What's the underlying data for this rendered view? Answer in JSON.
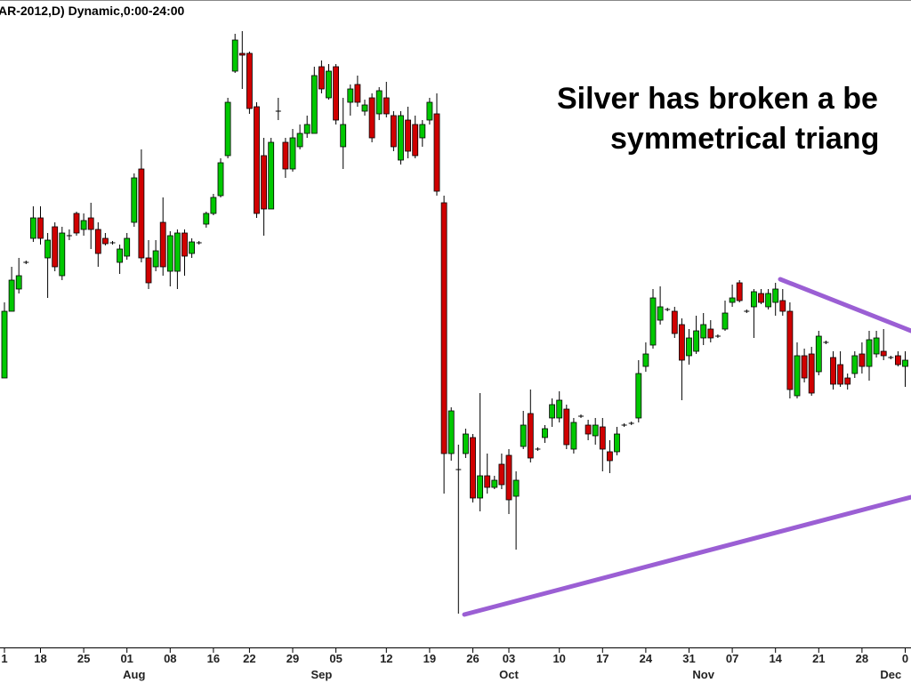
{
  "chart_data": {
    "type": "candlestick",
    "title": "AR-2012,D) Dynamic,0:00-24:00",
    "annotation": [
      "Silver has broken a be",
      "symmetrical triang"
    ],
    "up_color": "#00c800",
    "down_color": "#d00000",
    "ylim": [
      0,
      725
    ],
    "categories": [
      "1",
      null,
      null,
      null,
      null,
      "18",
      null,
      null,
      null,
      null,
      null,
      "25",
      null,
      null,
      null,
      null,
      null,
      "01",
      null,
      null,
      null,
      null,
      null,
      "08",
      null,
      null,
      null,
      null,
      null,
      "16",
      null,
      null,
      null,
      null,
      "22",
      null,
      null,
      null,
      null,
      null,
      "29",
      null,
      null,
      null,
      null,
      null,
      "05",
      null,
      null,
      null,
      null,
      null,
      null,
      "12",
      null,
      null,
      null,
      null,
      null,
      "19",
      null,
      null,
      null,
      null,
      null,
      "26",
      null,
      null,
      null,
      null,
      "03",
      null,
      null,
      null,
      null,
      null,
      null,
      "10",
      null,
      null,
      null,
      null,
      null,
      "17",
      null,
      null,
      null,
      null,
      null,
      "24",
      null,
      null,
      null,
      null,
      null,
      "31",
      null,
      null,
      null,
      null,
      null,
      "07",
      null,
      null,
      null,
      null,
      null,
      "14",
      null,
      null,
      null,
      null,
      null,
      "21",
      null,
      null,
      null,
      null,
      null,
      "28",
      null,
      null,
      null,
      null,
      null,
      "0"
    ],
    "months": [
      null,
      null,
      null,
      null,
      null,
      null,
      null,
      null,
      null,
      null,
      null,
      null,
      null,
      null,
      null,
      null,
      null,
      null,
      "Aug",
      null,
      null,
      null,
      null,
      null,
      null,
      null,
      null,
      null,
      null,
      null,
      null,
      null,
      null,
      null,
      null,
      null,
      null,
      null,
      null,
      null,
      null,
      null,
      null,
      null,
      "Sep",
      null,
      null,
      null,
      null,
      null,
      null,
      null,
      null,
      null,
      null,
      null,
      null,
      null,
      null,
      null,
      null,
      null,
      null,
      null,
      null,
      null,
      null,
      null,
      null,
      null,
      "Oct",
      null,
      null,
      null,
      null,
      null,
      null,
      null,
      null,
      null,
      null,
      null,
      null,
      null,
      null,
      null,
      null,
      null,
      null,
      null,
      null,
      null,
      null,
      null,
      null,
      null,
      null,
      "Nov",
      null,
      null,
      null,
      null,
      null,
      null,
      null,
      null,
      null,
      null,
      null,
      null,
      null,
      null,
      null,
      null,
      null,
      null,
      null,
      null,
      null,
      null,
      null,
      null,
      null,
      "Dec",
      null,
      null
    ],
    "open": [
      300,
      375,
      400,
      430,
      457,
      480,
      435,
      470,
      415,
      460,
      485,
      467,
      480,
      467,
      457,
      452,
      430,
      437,
      475,
      535,
      435,
      425,
      475,
      420,
      420,
      463,
      440,
      452,
      473,
      485,
      505,
      550,
      645,
      665,
      665,
      605,
      550,
      490,
      600,
      565,
      535,
      560,
      575,
      575,
      650,
      615,
      650,
      560,
      610,
      630,
      600,
      615,
      597,
      615,
      595,
      545,
      590,
      585,
      570,
      590,
      597,
      497,
      215,
      197,
      215,
      233,
      165,
      190,
      177,
      203,
      213,
      167,
      223,
      260,
      220,
      233,
      255,
      255,
      265,
      220,
      257,
      247,
      235,
      245,
      217,
      217,
      247,
      249,
      255,
      313,
      337,
      365,
      377,
      375,
      360,
      325,
      330,
      345,
      355,
      347,
      355,
      385,
      407,
      375,
      380,
      395,
      380,
      385,
      387,
      375,
      280,
      325,
      327,
      307,
      340,
      323,
      315,
      300,
      305,
      327,
      313,
      327,
      330,
      323,
      325,
      313
    ],
    "high": [
      385,
      425,
      435,
      432,
      493,
      493,
      463,
      475,
      470,
      467,
      487,
      485,
      497,
      475,
      463,
      454,
      450,
      463,
      530,
      557,
      455,
      455,
      503,
      465,
      467,
      467,
      457,
      454,
      487,
      507,
      547,
      615,
      687,
      690,
      667,
      610,
      570,
      570,
      615,
      570,
      580,
      585,
      595,
      650,
      657,
      653,
      653,
      615,
      630,
      640,
      613,
      620,
      627,
      633,
      600,
      600,
      605,
      595,
      590,
      615,
      620,
      505,
      267,
      225,
      243,
      237,
      283,
      215,
      190,
      215,
      220,
      195,
      263,
      287,
      222,
      247,
      277,
      285,
      270,
      255,
      259,
      253,
      255,
      255,
      230,
      245,
      249,
      251,
      320,
      340,
      400,
      403,
      379,
      380,
      367,
      355,
      370,
      373,
      365,
      349,
      387,
      405,
      410,
      377,
      400,
      400,
      400,
      407,
      400,
      385,
      340,
      333,
      335,
      353,
      342,
      330,
      330,
      305,
      330,
      340,
      353,
      353,
      355,
      325,
      330,
      330
    ],
    "low": [
      300,
      375,
      395,
      428,
      453,
      450,
      390,
      420,
      410,
      455,
      460,
      460,
      445,
      425,
      449,
      450,
      417,
      433,
      470,
      430,
      400,
      420,
      415,
      403,
      400,
      415,
      435,
      450,
      469,
      483,
      503,
      547,
      643,
      625,
      597,
      480,
      460,
      490,
      590,
      525,
      532,
      557,
      570,
      575,
      620,
      613,
      585,
      535,
      595,
      605,
      595,
      565,
      590,
      593,
      555,
      540,
      547,
      547,
      560,
      585,
      505,
      170,
      207,
      35,
      210,
      160,
      150,
      170,
      175,
      175,
      147,
      107,
      220,
      205,
      218,
      227,
      245,
      250,
      220,
      215,
      255,
      230,
      225,
      195,
      193,
      213,
      245,
      247,
      250,
      307,
      333,
      360,
      375,
      345,
      275,
      315,
      327,
      337,
      340,
      345,
      353,
      380,
      385,
      373,
      345,
      383,
      377,
      370,
      370,
      277,
      277,
      295,
      280,
      303,
      338,
      287,
      290,
      287,
      300,
      305,
      297,
      323,
      320,
      321,
      313,
      290
    ],
    "close": [
      375,
      410,
      415,
      430,
      480,
      457,
      455,
      425,
      463,
      460,
      463,
      477,
      467,
      440,
      451,
      452,
      445,
      457,
      525,
      435,
      407,
      443,
      425,
      460,
      463,
      437,
      453,
      452,
      485,
      503,
      542,
      610,
      680,
      663,
      603,
      485,
      490,
      565,
      600,
      535,
      570,
      575,
      585,
      640,
      625,
      645,
      590,
      585,
      625,
      610,
      607,
      570,
      623,
      597,
      560,
      595,
      555,
      550,
      585,
      610,
      510,
      215,
      263,
      197,
      237,
      165,
      190,
      177,
      185,
      180,
      163,
      185,
      247,
      210,
      220,
      243,
      270,
      275,
      225,
      250,
      257,
      237,
      247,
      220,
      207,
      237,
      247,
      249,
      305,
      327,
      390,
      380,
      377,
      350,
      320,
      345,
      353,
      360,
      345,
      347,
      373,
      390,
      387,
      375,
      397,
      385,
      395,
      400,
      375,
      287,
      325,
      300,
      283,
      347,
      340,
      293,
      293,
      293,
      325,
      313,
      343,
      345,
      325,
      323,
      315,
      320
    ]
  }
}
